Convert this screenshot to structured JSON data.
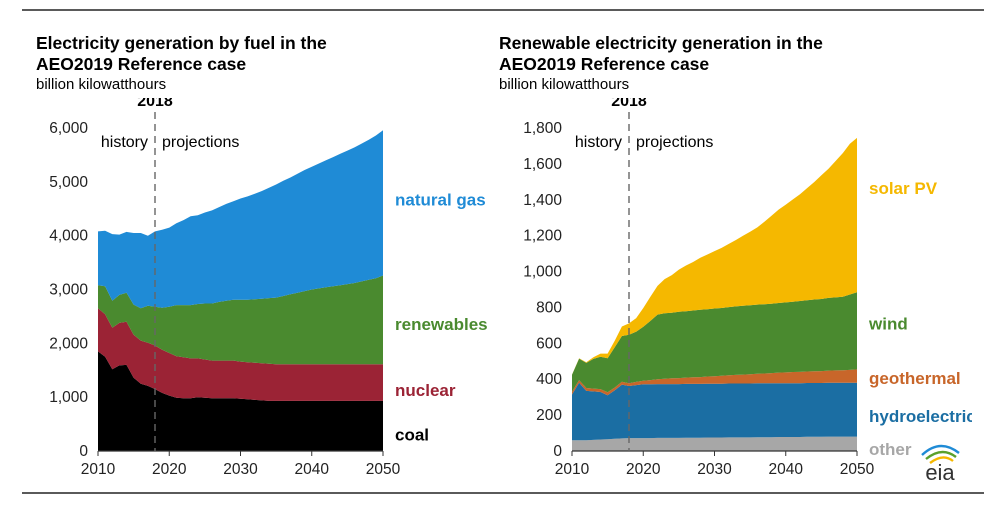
{
  "colors": {
    "coal": "#000000",
    "nuclear": "#9b2335",
    "renewables": "#4a8a2f",
    "natural_gas": "#1f8bd6",
    "other": "#a7a7a7",
    "hydroelectric": "#1b6ea3",
    "geothermal": "#c8662a",
    "wind": "#4a8a2f",
    "solar": "#f5b800",
    "axis": "#333333",
    "grid": "#cccccc",
    "divider": "#666666"
  },
  "logo": {
    "text": "eia"
  },
  "chart_data": [
    {
      "type": "area",
      "stacked": true,
      "title_line1": "Electricity generation by fuel in the",
      "title_line2": "AEO2019 Reference case",
      "ylabel": "billion kilowatthours",
      "divider_year": 2018,
      "divider_label": "2018",
      "history_label": "history",
      "projections_label": "projections",
      "xlim": [
        2010,
        2050
      ],
      "ylim": [
        0,
        6000
      ],
      "x_ticks": [
        2010,
        2020,
        2030,
        2040,
        2050
      ],
      "x_tick_labels": [
        "2010",
        "2020",
        "2030",
        "2040",
        "2050"
      ],
      "y_ticks": [
        0,
        1000,
        2000,
        3000,
        4000,
        5000,
        6000
      ],
      "y_tick_labels": [
        "0",
        "1,000",
        "2,000",
        "3,000",
        "4,000",
        "5,000",
        "6,000"
      ],
      "x": [
        2010,
        2011,
        2012,
        2013,
        2014,
        2015,
        2016,
        2017,
        2018,
        2019,
        2020,
        2021,
        2022,
        2023,
        2024,
        2025,
        2026,
        2027,
        2028,
        2029,
        2030,
        2031,
        2032,
        2033,
        2034,
        2035,
        2036,
        2037,
        2038,
        2039,
        2040,
        2041,
        2042,
        2043,
        2044,
        2045,
        2046,
        2047,
        2048,
        2049,
        2050
      ],
      "series": [
        {
          "name": "coal",
          "label": "coal",
          "color_key": "coal",
          "values": [
            1850,
            1750,
            1520,
            1590,
            1600,
            1360,
            1250,
            1210,
            1150,
            1080,
            1030,
            990,
            980,
            980,
            1000,
            990,
            980,
            980,
            980,
            980,
            970,
            960,
            950,
            940,
            930,
            930,
            930,
            930,
            930,
            930,
            930,
            930,
            930,
            930,
            930,
            930,
            930,
            930,
            930,
            930,
            930
          ]
        },
        {
          "name": "nuclear",
          "label": "nuclear",
          "color_key": "nuclear",
          "values": [
            800,
            790,
            770,
            790,
            800,
            800,
            800,
            800,
            810,
            800,
            790,
            770,
            760,
            740,
            720,
            710,
            700,
            700,
            700,
            700,
            690,
            690,
            690,
            690,
            690,
            680,
            680,
            680,
            680,
            680,
            680,
            680,
            680,
            680,
            680,
            680,
            680,
            680,
            680,
            680,
            680
          ]
        },
        {
          "name": "renewables",
          "label": "renewables",
          "color_key": "renewables",
          "values": [
            430,
            520,
            500,
            520,
            540,
            560,
            600,
            690,
            720,
            780,
            860,
            950,
            970,
            990,
            1010,
            1040,
            1060,
            1090,
            1110,
            1130,
            1150,
            1160,
            1180,
            1200,
            1220,
            1240,
            1270,
            1300,
            1330,
            1360,
            1390,
            1410,
            1430,
            1450,
            1470,
            1490,
            1510,
            1540,
            1570,
            1600,
            1650
          ]
        },
        {
          "name": "natural gas",
          "label": "natural gas",
          "color_key": "natural_gas",
          "values": [
            1000,
            1030,
            1240,
            1120,
            1130,
            1330,
            1400,
            1300,
            1400,
            1450,
            1470,
            1520,
            1580,
            1650,
            1650,
            1690,
            1730,
            1760,
            1800,
            1830,
            1880,
            1920,
            1960,
            2000,
            2050,
            2100,
            2140,
            2170,
            2210,
            2250,
            2280,
            2320,
            2360,
            2400,
            2440,
            2480,
            2520,
            2560,
            2600,
            2650,
            2700
          ]
        }
      ]
    },
    {
      "type": "area",
      "stacked": true,
      "title_line1": "Renewable electricity generation in the",
      "title_line2": "AEO2019 Reference case",
      "ylabel": "billion kilowatthours",
      "divider_year": 2018,
      "divider_label": "2018",
      "history_label": "history",
      "projections_label": "projections",
      "xlim": [
        2010,
        2050
      ],
      "ylim": [
        0,
        1800
      ],
      "x_ticks": [
        2010,
        2020,
        2030,
        2040,
        2050
      ],
      "x_tick_labels": [
        "2010",
        "2020",
        "2030",
        "2040",
        "2050"
      ],
      "y_ticks": [
        0,
        200,
        400,
        600,
        800,
        1000,
        1200,
        1400,
        1600,
        1800
      ],
      "y_tick_labels": [
        "0",
        "200",
        "400",
        "600",
        "800",
        "1,000",
        "1,200",
        "1,400",
        "1,600",
        "1,800"
      ],
      "x": [
        2010,
        2011,
        2012,
        2013,
        2014,
        2015,
        2016,
        2017,
        2018,
        2019,
        2020,
        2021,
        2022,
        2023,
        2024,
        2025,
        2026,
        2027,
        2028,
        2029,
        2030,
        2031,
        2032,
        2033,
        2034,
        2035,
        2036,
        2037,
        2038,
        2039,
        2040,
        2041,
        2042,
        2043,
        2044,
        2045,
        2046,
        2047,
        2048,
        2049,
        2050
      ],
      "series": [
        {
          "name": "other",
          "label": "other",
          "color_key": "other",
          "values": [
            60,
            60,
            60,
            62,
            64,
            66,
            68,
            70,
            72,
            72,
            72,
            72,
            73,
            73,
            73,
            73,
            74,
            74,
            74,
            75,
            75,
            75,
            76,
            76,
            76,
            76,
            77,
            77,
            77,
            78,
            78,
            78,
            78,
            79,
            79,
            79,
            80,
            80,
            80,
            80,
            80
          ]
        },
        {
          "name": "hydroelectric",
          "label": "hydroelectric",
          "color_key": "hydroelectric",
          "values": [
            255,
            320,
            275,
            270,
            265,
            245,
            270,
            300,
            290,
            295,
            300,
            300,
            300,
            300,
            300,
            300,
            300,
            300,
            300,
            300,
            300,
            300,
            300,
            300,
            300,
            300,
            300,
            300,
            300,
            300,
            300,
            300,
            300,
            300,
            300,
            300,
            300,
            300,
            300,
            300,
            300
          ]
        },
        {
          "name": "geothermal",
          "label": "geothermal",
          "color_key": "geothermal",
          "values": [
            15,
            15,
            16,
            16,
            16,
            16,
            16,
            16,
            16,
            18,
            20,
            23,
            27,
            30,
            32,
            33,
            35,
            37,
            38,
            40,
            42,
            44,
            46,
            48,
            50,
            52,
            54,
            55,
            57,
            59,
            60,
            62,
            63,
            64,
            65,
            66,
            68,
            69,
            70,
            72,
            75
          ]
        },
        {
          "name": "wind",
          "label": "wind",
          "color_key": "wind",
          "values": [
            95,
            120,
            140,
            165,
            180,
            190,
            225,
            255,
            270,
            280,
            300,
            330,
            360,
            365,
            365,
            370,
            370,
            372,
            375,
            375,
            377,
            378,
            380,
            382,
            383,
            384,
            385,
            386,
            387,
            388,
            390,
            392,
            395,
            397,
            400,
            402,
            405,
            407,
            410,
            420,
            430
          ]
        },
        {
          "name": "solar PV",
          "label": "solar PV",
          "color_key": "solar",
          "values": [
            1,
            2,
            4,
            9,
            18,
            26,
            36,
            53,
            63,
            75,
            105,
            135,
            160,
            190,
            210,
            235,
            255,
            270,
            290,
            305,
            320,
            335,
            352,
            370,
            390,
            410,
            430,
            460,
            490,
            520,
            545,
            570,
            595,
            625,
            655,
            690,
            720,
            760,
            800,
            840,
            860
          ]
        }
      ]
    }
  ]
}
